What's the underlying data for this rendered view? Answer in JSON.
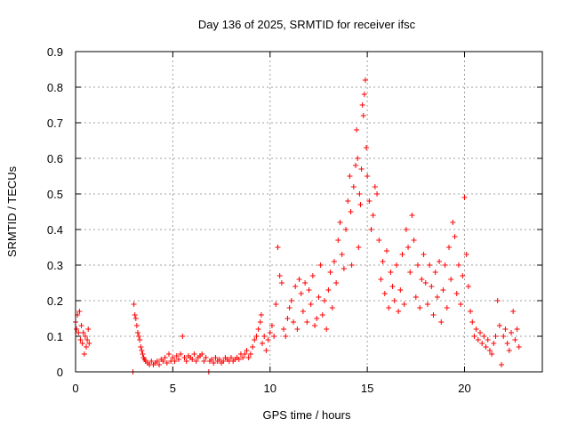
{
  "chart_data": {
    "type": "scatter",
    "title": "Day 136 of 2025, SRMTID for receiver ifsc",
    "xlabel": "GPS time / hours",
    "ylabel": "SRMTID / TECUs",
    "xlim": [
      0,
      24
    ],
    "ylim": [
      0,
      0.9
    ],
    "xticks": [
      0,
      5,
      10,
      15,
      20
    ],
    "xtick_labels": [
      "0",
      "5",
      "10",
      "15",
      "20"
    ],
    "yticks": [
      0,
      0.1,
      0.2,
      0.3,
      0.4,
      0.5,
      0.6,
      0.7,
      0.8,
      0.9
    ],
    "ytick_labels": [
      "0",
      "0.1",
      "0.2",
      "0.3",
      "0.4",
      "0.5",
      "0.6",
      "0.7",
      "0.8",
      "0.9"
    ],
    "grid": true,
    "marker": "plus",
    "color": "#ff0000",
    "series": [
      {
        "name": "SRMTID",
        "points": [
          [
            0.0,
            0.14
          ],
          [
            0.05,
            0.12
          ],
          [
            0.1,
            0.16
          ],
          [
            0.15,
            0.11
          ],
          [
            0.2,
            0.17
          ],
          [
            0.25,
            0.09
          ],
          [
            0.3,
            0.13
          ],
          [
            0.35,
            0.08
          ],
          [
            0.4,
            0.11
          ],
          [
            0.45,
            0.05
          ],
          [
            0.5,
            0.1
          ],
          [
            0.55,
            0.07
          ],
          [
            0.6,
            0.09
          ],
          [
            0.65,
            0.12
          ],
          [
            0.7,
            0.08
          ],
          [
            2.95,
            0.0
          ],
          [
            3.0,
            0.19
          ],
          [
            3.05,
            0.16
          ],
          [
            3.1,
            0.15
          ],
          [
            3.15,
            0.13
          ],
          [
            3.2,
            0.11
          ],
          [
            3.25,
            0.1
          ],
          [
            3.3,
            0.09
          ],
          [
            3.35,
            0.07
          ],
          [
            3.4,
            0.06
          ],
          [
            3.45,
            0.05
          ],
          [
            3.5,
            0.04
          ],
          [
            3.55,
            0.035
          ],
          [
            3.6,
            0.03
          ],
          [
            3.7,
            0.025
          ],
          [
            3.8,
            0.02
          ],
          [
            3.9,
            0.03
          ],
          [
            4.0,
            0.02
          ],
          [
            4.1,
            0.025
          ],
          [
            4.2,
            0.03
          ],
          [
            4.3,
            0.02
          ],
          [
            4.4,
            0.035
          ],
          [
            4.5,
            0.03
          ],
          [
            4.6,
            0.04
          ],
          [
            4.7,
            0.025
          ],
          [
            4.8,
            0.05
          ],
          [
            4.9,
            0.03
          ],
          [
            5.0,
            0.04
          ],
          [
            5.1,
            0.03
          ],
          [
            5.2,
            0.045
          ],
          [
            5.3,
            0.035
          ],
          [
            5.4,
            0.05
          ],
          [
            5.5,
            0.1
          ],
          [
            5.6,
            0.04
          ],
          [
            5.7,
            0.03
          ],
          [
            5.8,
            0.045
          ],
          [
            5.9,
            0.04
          ],
          [
            6.0,
            0.035
          ],
          [
            6.1,
            0.05
          ],
          [
            6.2,
            0.03
          ],
          [
            6.3,
            0.04
          ],
          [
            6.4,
            0.045
          ],
          [
            6.5,
            0.05
          ],
          [
            6.6,
            0.03
          ],
          [
            6.7,
            0.04
          ],
          [
            6.85,
            0.0
          ],
          [
            6.9,
            0.03
          ],
          [
            7.0,
            0.035
          ],
          [
            7.1,
            0.025
          ],
          [
            7.2,
            0.04
          ],
          [
            7.3,
            0.03
          ],
          [
            7.4,
            0.035
          ],
          [
            7.5,
            0.025
          ],
          [
            7.6,
            0.03
          ],
          [
            7.7,
            0.04
          ],
          [
            7.8,
            0.035
          ],
          [
            7.9,
            0.03
          ],
          [
            8.0,
            0.04
          ],
          [
            8.1,
            0.03
          ],
          [
            8.2,
            0.035
          ],
          [
            8.3,
            0.04
          ],
          [
            8.4,
            0.035
          ],
          [
            8.5,
            0.05
          ],
          [
            8.6,
            0.04
          ],
          [
            8.7,
            0.05
          ],
          [
            8.8,
            0.06
          ],
          [
            8.9,
            0.04
          ],
          [
            9.0,
            0.05
          ],
          [
            9.1,
            0.07
          ],
          [
            9.2,
            0.09
          ],
          [
            9.3,
            0.1
          ],
          [
            9.4,
            0.12
          ],
          [
            9.5,
            0.14
          ],
          [
            9.55,
            0.16
          ],
          [
            9.6,
            0.08
          ],
          [
            9.7,
            0.1
          ],
          [
            9.8,
            0.06
          ],
          [
            9.9,
            0.09
          ],
          [
            10.0,
            0.11
          ],
          [
            10.1,
            0.13
          ],
          [
            10.2,
            0.1
          ],
          [
            10.3,
            0.19
          ],
          [
            10.4,
            0.35
          ],
          [
            10.5,
            0.27
          ],
          [
            10.6,
            0.25
          ],
          [
            10.7,
            0.12
          ],
          [
            10.8,
            0.1
          ],
          [
            10.9,
            0.15
          ],
          [
            11.0,
            0.18
          ],
          [
            11.1,
            0.2
          ],
          [
            11.2,
            0.14
          ],
          [
            11.3,
            0.24
          ],
          [
            11.4,
            0.12
          ],
          [
            11.5,
            0.26
          ],
          [
            11.6,
            0.22
          ],
          [
            11.7,
            0.17
          ],
          [
            11.8,
            0.25
          ],
          [
            11.9,
            0.14
          ],
          [
            12.0,
            0.23
          ],
          [
            12.1,
            0.19
          ],
          [
            12.2,
            0.27
          ],
          [
            12.3,
            0.13
          ],
          [
            12.4,
            0.15
          ],
          [
            12.5,
            0.21
          ],
          [
            12.6,
            0.3
          ],
          [
            12.7,
            0.16
          ],
          [
            12.8,
            0.2
          ],
          [
            12.9,
            0.12
          ],
          [
            13.0,
            0.23
          ],
          [
            13.1,
            0.28
          ],
          [
            13.2,
            0.18
          ],
          [
            13.3,
            0.31
          ],
          [
            13.4,
            0.25
          ],
          [
            13.5,
            0.37
          ],
          [
            13.6,
            0.42
          ],
          [
            13.7,
            0.33
          ],
          [
            13.8,
            0.29
          ],
          [
            13.9,
            0.4
          ],
          [
            14.0,
            0.48
          ],
          [
            14.1,
            0.55
          ],
          [
            14.15,
            0.45
          ],
          [
            14.2,
            0.3
          ],
          [
            14.3,
            0.52
          ],
          [
            14.4,
            0.58
          ],
          [
            14.45,
            0.68
          ],
          [
            14.5,
            0.6
          ],
          [
            14.55,
            0.35
          ],
          [
            14.6,
            0.5
          ],
          [
            14.65,
            0.47
          ],
          [
            14.7,
            0.57
          ],
          [
            14.75,
            0.75
          ],
          [
            14.8,
            0.72
          ],
          [
            14.85,
            0.78
          ],
          [
            14.9,
            0.82
          ],
          [
            14.95,
            0.63
          ],
          [
            15.0,
            0.55
          ],
          [
            15.1,
            0.48
          ],
          [
            15.2,
            0.4
          ],
          [
            15.3,
            0.44
          ],
          [
            15.4,
            0.52
          ],
          [
            15.5,
            0.5
          ],
          [
            15.6,
            0.37
          ],
          [
            15.7,
            0.26
          ],
          [
            15.8,
            0.31
          ],
          [
            15.9,
            0.22
          ],
          [
            16.0,
            0.34
          ],
          [
            16.1,
            0.18
          ],
          [
            16.2,
            0.28
          ],
          [
            16.3,
            0.24
          ],
          [
            16.4,
            0.2
          ],
          [
            16.5,
            0.3
          ],
          [
            16.6,
            0.17
          ],
          [
            16.7,
            0.23
          ],
          [
            16.8,
            0.33
          ],
          [
            16.9,
            0.19
          ],
          [
            17.0,
            0.4
          ],
          [
            17.1,
            0.35
          ],
          [
            17.2,
            0.28
          ],
          [
            17.3,
            0.44
          ],
          [
            17.4,
            0.37
          ],
          [
            17.5,
            0.21
          ],
          [
            17.6,
            0.3
          ],
          [
            17.7,
            0.18
          ],
          [
            17.8,
            0.26
          ],
          [
            17.9,
            0.33
          ],
          [
            18.0,
            0.25
          ],
          [
            18.1,
            0.19
          ],
          [
            18.2,
            0.3
          ],
          [
            18.3,
            0.24
          ],
          [
            18.4,
            0.16
          ],
          [
            18.5,
            0.28
          ],
          [
            18.6,
            0.21
          ],
          [
            18.7,
            0.31
          ],
          [
            18.8,
            0.14
          ],
          [
            18.9,
            0.23
          ],
          [
            19.0,
            0.3
          ],
          [
            19.1,
            0.18
          ],
          [
            19.2,
            0.35
          ],
          [
            19.3,
            0.26
          ],
          [
            19.4,
            0.42
          ],
          [
            19.5,
            0.38
          ],
          [
            19.6,
            0.22
          ],
          [
            19.7,
            0.3
          ],
          [
            19.8,
            0.19
          ],
          [
            19.9,
            0.27
          ],
          [
            20.0,
            0.49
          ],
          [
            20.1,
            0.33
          ],
          [
            20.2,
            0.24
          ],
          [
            20.3,
            0.17
          ],
          [
            20.4,
            0.14
          ],
          [
            20.5,
            0.1
          ],
          [
            20.6,
            0.12
          ],
          [
            20.7,
            0.09
          ],
          [
            20.8,
            0.11
          ],
          [
            20.9,
            0.08
          ],
          [
            21.0,
            0.1
          ],
          [
            21.1,
            0.07
          ],
          [
            21.2,
            0.09
          ],
          [
            21.3,
            0.06
          ],
          [
            21.4,
            0.05
          ],
          [
            21.5,
            0.08
          ],
          [
            21.6,
            0.1
          ],
          [
            21.7,
            0.2
          ],
          [
            21.8,
            0.13
          ],
          [
            21.9,
            0.02
          ],
          [
            22.0,
            0.1
          ],
          [
            22.1,
            0.12
          ],
          [
            22.2,
            0.08
          ],
          [
            22.3,
            0.06
          ],
          [
            22.4,
            0.11
          ],
          [
            22.5,
            0.17
          ],
          [
            22.6,
            0.09
          ],
          [
            22.7,
            0.12
          ],
          [
            22.8,
            0.07
          ]
        ]
      }
    ]
  }
}
